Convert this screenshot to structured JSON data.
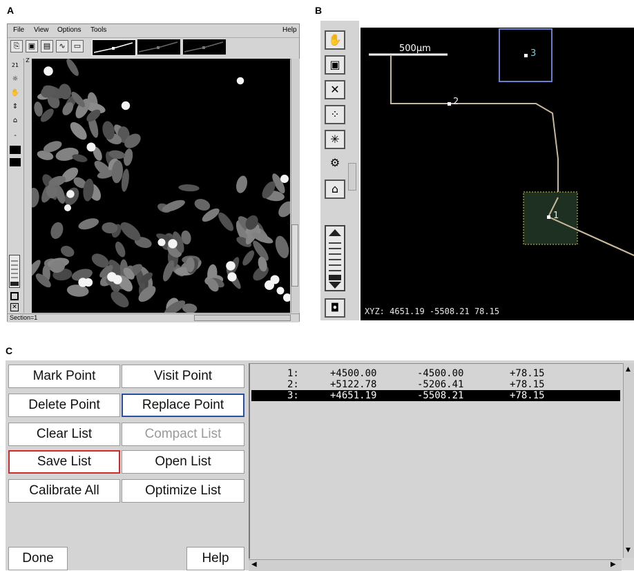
{
  "labels": {
    "a": "A",
    "b": "B",
    "c": "C"
  },
  "panelA": {
    "menu": {
      "file": "File",
      "view": "View",
      "options": "Options",
      "tools": "Tools",
      "help": "Help"
    },
    "left_strip": {
      "section_num": "21",
      "z_label": "Z",
      "dash": "-"
    },
    "status": "Section=1"
  },
  "panelB": {
    "scale_label": "500µm",
    "points": [
      {
        "label": "1"
      },
      {
        "label": "2"
      },
      {
        "label": "3"
      }
    ],
    "coords": "XYZ: 4651.19 -5508.21 78.15"
  },
  "panelC": {
    "buttons": {
      "mark": "Mark Point",
      "visit": "Visit Point",
      "delete": "Delete Point",
      "replace": "Replace Point",
      "clear": "Clear List",
      "compact": "Compact List",
      "save": "Save List",
      "open": "Open List",
      "calibrate": "Calibrate All",
      "optimize": "Optimize List",
      "done": "Done",
      "help": "Help"
    },
    "rows": [
      {
        "idx": "1:",
        "x": "+4500.00",
        "y": "-4500.00",
        "z": "+78.15"
      },
      {
        "idx": "2:",
        "x": "+5122.78",
        "y": "-5206.41",
        "z": "+78.15"
      },
      {
        "idx": "3:",
        "x": "+4651.19",
        "y": "-5508.21",
        "z": "+78.15"
      }
    ],
    "selected_row": 3
  },
  "colors": {
    "selection": "#000000",
    "replace_border": "#2b4fa0",
    "save_border": "#d22a2a",
    "path": "#c8b89a",
    "box_blue": "#6a7fd6",
    "box_yellow": "#d8d040"
  }
}
